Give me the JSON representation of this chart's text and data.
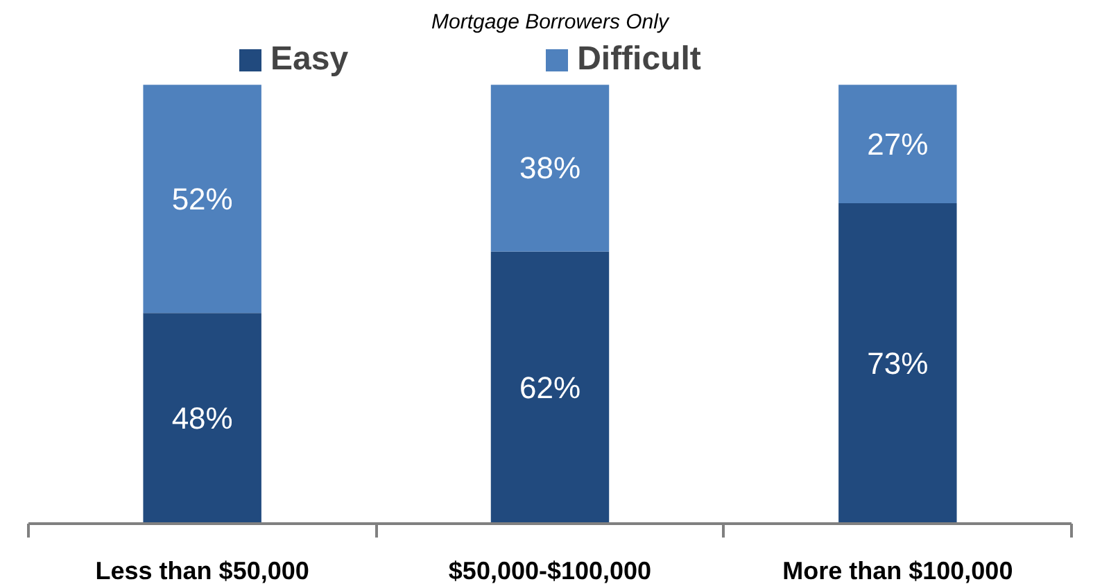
{
  "chart_data": {
    "type": "bar",
    "subtitle": "Mortgage Borrowers Only",
    "stacked": true,
    "categories": [
      "Less than $50,000",
      "$50,000-$100,000",
      "More than $100,000"
    ],
    "series": [
      {
        "name": "Easy",
        "color": "#214a7e",
        "values": [
          48,
          62,
          73
        ],
        "value_labels": [
          "48%",
          "62%",
          "73%"
        ]
      },
      {
        "name": "Difficult",
        "color": "#4f81bd",
        "values": [
          52,
          38,
          27
        ],
        "value_labels": [
          "52%",
          "38%",
          "27%"
        ]
      }
    ],
    "ylim": [
      0,
      100
    ],
    "grid": false,
    "legend": "top",
    "tick_labels": "x"
  }
}
